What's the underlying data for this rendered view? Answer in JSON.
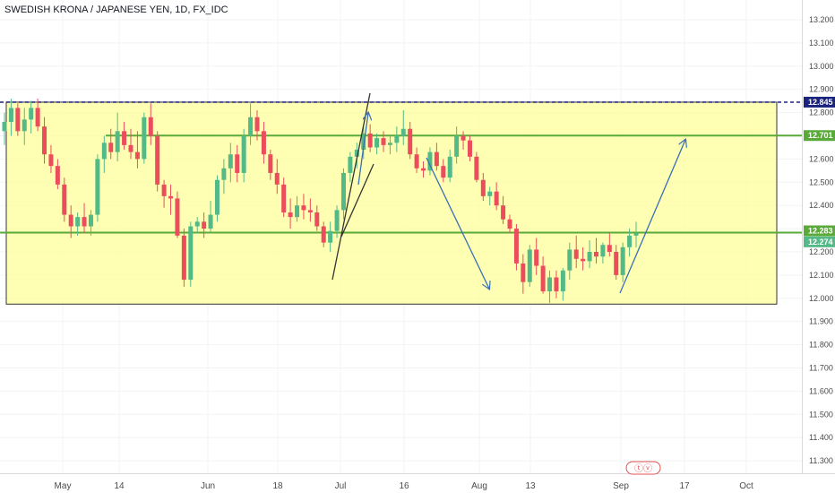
{
  "chart_data": {
    "type": "candlestick",
    "title": "SWEDISH KRONA / JAPANESE YEN, 1D, FX_IDC",
    "ylim": [
      11.27,
      13.27
    ],
    "y_ticks": [
      "13.200",
      "13.100",
      "13.000",
      "12.900",
      "12.800",
      "12.700",
      "12.600",
      "12.500",
      "12.400",
      "12.300",
      "12.200",
      "12.100",
      "12.000",
      "11.900",
      "11.800",
      "11.700",
      "11.600",
      "11.500",
      "11.400",
      "11.300"
    ],
    "x_ticks": [
      "May",
      "14",
      "Jun",
      "18",
      "Jul",
      "16",
      "Aug",
      "13",
      "Sep",
      "17",
      "Oct"
    ],
    "colors": {
      "up": "#53b987",
      "down": "#eb4d5c",
      "zone_fill": "#ffff99",
      "level_line": "#5aaa3a",
      "resistance": "#1a237e",
      "arrow": "#3a6fb5",
      "channel": "#333333"
    },
    "price_labels": [
      {
        "value": "12.845",
        "color": "#1a237e"
      },
      {
        "value": "12.701",
        "color": "#5aaa3a"
      },
      {
        "value": "12.283",
        "color": "#5aaa3a"
      },
      {
        "value": "12.274",
        "color": "#53b987"
      }
    ],
    "levels": {
      "resistance": 12.845,
      "upper": 12.701,
      "lower": 12.283,
      "zone_top": 12.845,
      "zone_bottom": 11.975
    },
    "watermark": "ⓣⓥ",
    "candles": [
      [
        12.72,
        12.8,
        12.66,
        12.76
      ],
      [
        12.76,
        12.86,
        12.7,
        12.82
      ],
      [
        12.82,
        12.84,
        12.7,
        12.72
      ],
      [
        12.72,
        12.82,
        12.66,
        12.77
      ],
      [
        12.77,
        12.85,
        12.71,
        12.82
      ],
      [
        12.82,
        12.86,
        12.72,
        12.74
      ],
      [
        12.74,
        12.78,
        12.58,
        12.62
      ],
      [
        12.62,
        12.66,
        12.54,
        12.57
      ],
      [
        12.57,
        12.6,
        12.47,
        12.49
      ],
      [
        12.49,
        12.52,
        12.33,
        12.36
      ],
      [
        12.36,
        12.4,
        12.26,
        12.31
      ],
      [
        12.31,
        12.37,
        12.27,
        12.35
      ],
      [
        12.35,
        12.41,
        12.28,
        12.31
      ],
      [
        12.31,
        12.38,
        12.27,
        12.36
      ],
      [
        12.36,
        12.62,
        12.33,
        12.6
      ],
      [
        12.6,
        12.7,
        12.54,
        12.67
      ],
      [
        12.67,
        12.73,
        12.6,
        12.63
      ],
      [
        12.63,
        12.8,
        12.59,
        12.72
      ],
      [
        12.72,
        12.76,
        12.64,
        12.66
      ],
      [
        12.66,
        12.73,
        12.6,
        12.63
      ],
      [
        12.63,
        12.72,
        12.56,
        12.6
      ],
      [
        12.6,
        12.8,
        12.58,
        12.78
      ],
      [
        12.78,
        12.84,
        12.66,
        12.7
      ],
      [
        12.7,
        12.72,
        12.46,
        12.49
      ],
      [
        12.49,
        12.51,
        12.39,
        12.44
      ],
      [
        12.44,
        12.49,
        12.36,
        12.43
      ],
      [
        12.43,
        12.46,
        12.26,
        12.27
      ],
      [
        12.27,
        12.3,
        12.05,
        12.08
      ],
      [
        12.08,
        12.33,
        12.05,
        12.31
      ],
      [
        12.31,
        12.35,
        12.28,
        12.33
      ],
      [
        12.33,
        12.37,
        12.26,
        12.3
      ],
      [
        12.3,
        12.42,
        12.28,
        12.36
      ],
      [
        12.36,
        12.53,
        12.33,
        12.51
      ],
      [
        12.51,
        12.6,
        12.45,
        12.56
      ],
      [
        12.56,
        12.67,
        12.5,
        12.62
      ],
      [
        12.62,
        12.66,
        12.5,
        12.54
      ],
      [
        12.54,
        12.73,
        12.5,
        12.7
      ],
      [
        12.7,
        12.84,
        12.66,
        12.78
      ],
      [
        12.78,
        12.81,
        12.68,
        12.72
      ],
      [
        12.72,
        12.76,
        12.58,
        12.62
      ],
      [
        12.62,
        12.64,
        12.51,
        12.54
      ],
      [
        12.54,
        12.6,
        12.45,
        12.49
      ],
      [
        12.49,
        12.52,
        12.35,
        12.37
      ],
      [
        12.37,
        12.43,
        12.3,
        12.35
      ],
      [
        12.35,
        12.44,
        12.33,
        12.4
      ],
      [
        12.4,
        12.45,
        12.34,
        12.38
      ],
      [
        12.38,
        12.43,
        12.33,
        12.37
      ],
      [
        12.37,
        12.4,
        12.29,
        12.31
      ],
      [
        12.31,
        12.33,
        12.22,
        12.24
      ],
      [
        12.24,
        12.33,
        12.2,
        12.29
      ],
      [
        12.29,
        12.4,
        12.26,
        12.38
      ],
      [
        12.38,
        12.56,
        12.34,
        12.54
      ],
      [
        12.54,
        12.63,
        12.5,
        12.61
      ],
      [
        12.61,
        12.67,
        12.56,
        12.64
      ],
      [
        12.64,
        12.74,
        12.6,
        12.71
      ],
      [
        12.71,
        12.75,
        12.63,
        12.65
      ],
      [
        12.65,
        12.71,
        12.62,
        12.69
      ],
      [
        12.69,
        12.72,
        12.63,
        12.66
      ],
      [
        12.66,
        12.7,
        12.62,
        12.67
      ],
      [
        12.67,
        12.74,
        12.63,
        12.7
      ],
      [
        12.7,
        12.81,
        12.66,
        12.73
      ],
      [
        12.73,
        12.76,
        12.6,
        12.62
      ],
      [
        12.62,
        12.65,
        12.54,
        12.56
      ],
      [
        12.56,
        12.59,
        12.52,
        12.55
      ],
      [
        12.55,
        12.65,
        12.53,
        12.63
      ],
      [
        12.63,
        12.67,
        12.55,
        12.57
      ],
      [
        12.57,
        12.6,
        12.5,
        12.52
      ],
      [
        12.52,
        12.64,
        12.5,
        12.61
      ],
      [
        12.61,
        12.74,
        12.58,
        12.7
      ],
      [
        12.7,
        12.72,
        12.64,
        12.68
      ],
      [
        12.68,
        12.7,
        12.59,
        12.61
      ],
      [
        12.61,
        12.63,
        12.5,
        12.51
      ],
      [
        12.51,
        12.54,
        12.42,
        12.44
      ],
      [
        12.44,
        12.48,
        12.4,
        12.46
      ],
      [
        12.46,
        12.5,
        12.38,
        12.4
      ],
      [
        12.4,
        12.44,
        12.32,
        12.34
      ],
      [
        12.34,
        12.36,
        12.28,
        12.3
      ],
      [
        12.3,
        12.32,
        12.12,
        12.15
      ],
      [
        12.15,
        12.19,
        12.02,
        12.07
      ],
      [
        12.07,
        12.23,
        12.05,
        12.21
      ],
      [
        12.21,
        12.26,
        12.1,
        12.14
      ],
      [
        12.14,
        12.18,
        12.02,
        12.03
      ],
      [
        12.03,
        12.12,
        11.98,
        12.09
      ],
      [
        12.09,
        12.12,
        12.0,
        12.03
      ],
      [
        12.03,
        12.13,
        11.99,
        12.12
      ],
      [
        12.12,
        12.24,
        12.08,
        12.21
      ],
      [
        12.21,
        12.27,
        12.13,
        12.17
      ],
      [
        12.17,
        12.22,
        12.12,
        12.16
      ],
      [
        12.16,
        12.25,
        12.13,
        12.2
      ],
      [
        12.2,
        12.26,
        12.15,
        12.18
      ],
      [
        12.18,
        12.24,
        12.15,
        12.23
      ],
      [
        12.23,
        12.28,
        12.18,
        12.2
      ],
      [
        12.2,
        12.23,
        12.08,
        12.1
      ],
      [
        12.1,
        12.24,
        12.07,
        12.22
      ],
      [
        12.22,
        12.3,
        12.18,
        12.27
      ],
      [
        12.27,
        12.33,
        12.22,
        12.28
      ]
    ]
  }
}
